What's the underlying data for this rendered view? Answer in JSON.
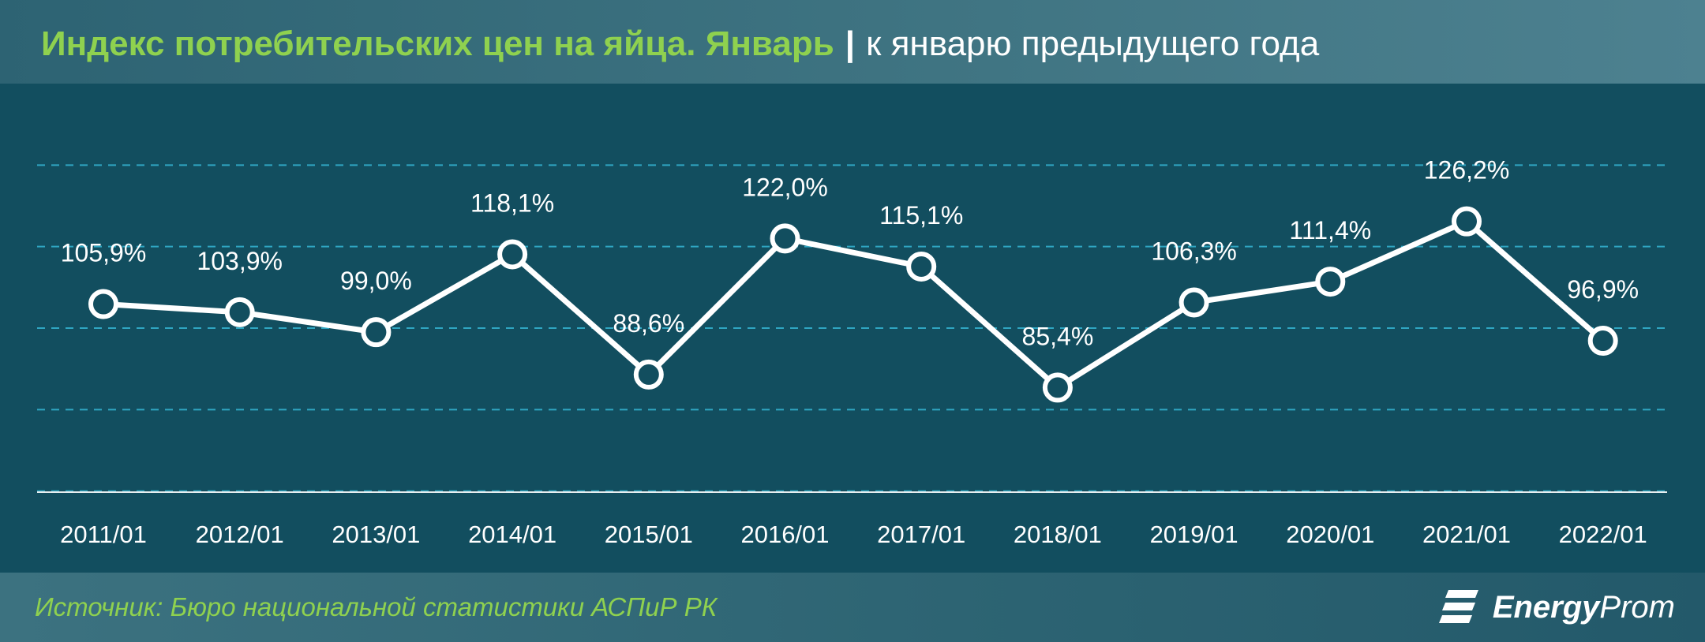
{
  "header": {
    "title": "Индекс потребительских цен на яйца. Январь",
    "separator": "|",
    "subtitle": "к январю предыдущего года"
  },
  "footer": {
    "source": "Источник: Бюро национальной статистики АСПиР РК",
    "brand_bold": "Energy",
    "brand_rest": "Prom"
  },
  "colors": {
    "background": "#124e5f",
    "title": "#8fd14f",
    "line": "#ffffff",
    "grid": "#2fa6c2"
  },
  "chart_data": {
    "type": "line",
    "title": "Индекс потребительских цен на яйца. Январь",
    "subtitle": "к январю предыдущего года",
    "categories": [
      "2011/01",
      "2012/01",
      "2013/01",
      "2014/01",
      "2015/01",
      "2016/01",
      "2017/01",
      "2018/01",
      "2019/01",
      "2020/01",
      "2021/01",
      "2022/01"
    ],
    "values": [
      105.9,
      103.9,
      99.0,
      118.1,
      88.6,
      122.0,
      115.1,
      85.4,
      106.3,
      111.4,
      126.2,
      96.9
    ],
    "labels": [
      "105,9%",
      "103,9%",
      "99,0%",
      "118,1%",
      "88,6%",
      "122,0%",
      "115,1%",
      "85,4%",
      "106,3%",
      "111,4%",
      "126,2%",
      "96,9%"
    ],
    "ylim": [
      40,
      160
    ],
    "grid": "horizontal dashed",
    "legend": "none"
  }
}
